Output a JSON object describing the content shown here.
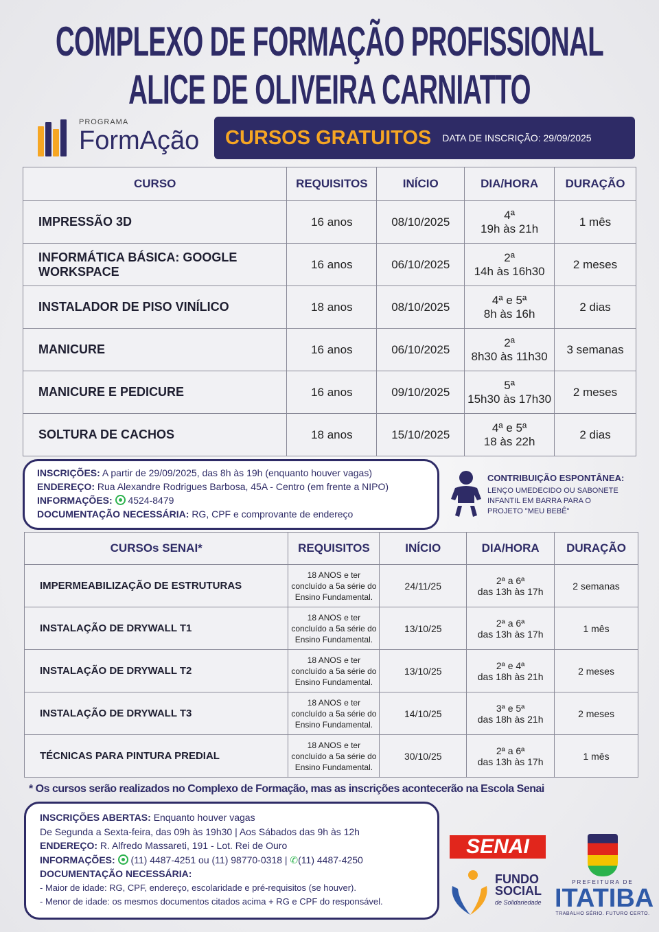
{
  "title": {
    "line1": "COMPLEXO DE FORMAÇÃO PROFISSIONAL",
    "line2": "ALICE DE OLIVEIRA CARNIATTO"
  },
  "logo": {
    "small": "PROGRAMA",
    "name": "FormAção"
  },
  "banner": {
    "title": "CURSOS GRATUITOS",
    "date": "DATA DE INSCRIÇÃO: 29/09/2025"
  },
  "table1": {
    "headers": [
      "CURSO",
      "REQUISITOS",
      "INÍCIO",
      "DIA/HORA",
      "DURAÇÃO"
    ],
    "rows": [
      {
        "curso": "IMPRESSÃO 3D",
        "req": "16 anos",
        "inicio": "08/10/2025",
        "dia": "4ª",
        "hora": "19h às 21h",
        "dur": "1 mês"
      },
      {
        "curso": "INFORMÁTICA BÁSICA: GOOGLE WORKSPACE",
        "req": "16 anos",
        "inicio": "06/10/2025",
        "dia": "2ª",
        "hora": "14h às 16h30",
        "dur": "2 meses"
      },
      {
        "curso": "INSTALADOR DE PISO VINÍLICO",
        "req": "18 anos",
        "inicio": "08/10/2025",
        "dia": "4ª e 5ª",
        "hora": "8h às 16h",
        "dur": "2 dias"
      },
      {
        "curso": "MANICURE",
        "req": "16 anos",
        "inicio": "06/10/2025",
        "dia": "2ª",
        "hora": "8h30 às 11h30",
        "dur": "3 semanas"
      },
      {
        "curso": "MANICURE E PEDICURE",
        "req": "16 anos",
        "inicio": "09/10/2025",
        "dia": "5ª",
        "hora": "15h30 às 17h30",
        "dur": "2 meses"
      },
      {
        "curso": "SOLTURA DE CACHOS",
        "req": "18 anos",
        "inicio": "15/10/2025",
        "dia": "4ª e 5ª",
        "hora": "18 às 22h",
        "dur": "2 dias"
      }
    ]
  },
  "info1": {
    "l1": "INSCRIÇÕES:",
    "v1": "A partir de 29/09/2025, das 8h às 19h (enquanto houver vagas)",
    "l2": "ENDEREÇO:",
    "v2": "Rua Alexandre Rodrigues Barbosa, 45A - Centro (em frente a NIPO)",
    "l3": "INFORMAÇÕES:",
    "v3": "4524-8479",
    "l4": "DOCUMENTAÇÃO NECESSÁRIA:",
    "v4": "RG, CPF e comprovante de endereço"
  },
  "contrib": {
    "title": "CONTRIBUIÇÃO ESPONTÂNEA:",
    "text": "LENÇO UMEDECIDO OU SABONETE INFANTIL EM BARRA PARA O PROJETO \"MEU BEBÊ\""
  },
  "table2": {
    "headers": [
      "CURSOs SENAI*",
      "REQUISITOS",
      "INÍCIO",
      "DIA/HORA",
      "DURAÇÃO"
    ],
    "rows": [
      {
        "curso": "IMPERMEABILIZAÇÃO DE ESTRUTURAS",
        "req": "18 ANOS e ter concluído a 5a série do Ensino Fundamental.",
        "inicio": "24/11/25",
        "dia": "2ª a 6ª",
        "hora": "das 13h às 17h",
        "dur": "2 semanas"
      },
      {
        "curso": "INSTALAÇÃO DE DRYWALL T1",
        "req": "18 ANOS e ter concluído a 5a série do Ensino Fundamental.",
        "inicio": "13/10/25",
        "dia": "2ª a 6ª",
        "hora": "das 13h às 17h",
        "dur": "1 mês"
      },
      {
        "curso": "INSTALAÇÃO DE DRYWALL T2",
        "req": "18 ANOS e ter concluído a 5a série do Ensino Fundamental.",
        "inicio": "13/10/25",
        "dia": "2ª e 4ª",
        "hora": "das 18h às 21h",
        "dur": "2 meses"
      },
      {
        "curso": "INSTALAÇÃO DE DRYWALL T3",
        "req": "18 ANOS e ter concluído a 5a série do Ensino Fundamental.",
        "inicio": "14/10/25",
        "dia": "3ª e 5ª",
        "hora": "das 18h às 21h",
        "dur": "2 meses"
      },
      {
        "curso": "TÉCNICAS PARA PINTURA PREDIAL",
        "req": "18 ANOS e ter concluído a 5a série do Ensino Fundamental.",
        "inicio": "30/10/25",
        "dia": "2ª a 6ª",
        "hora": "das 13h às 17h",
        "dur": "1 mês"
      }
    ]
  },
  "footnote": "* Os cursos serão realizados no Complexo de Formação, mas as inscrições acontecerão na Escola Senai",
  "info2": {
    "l1": "INSCRIÇÕES ABERTAS:",
    "v1": "Enquanto houver vagas",
    "line2": "De Segunda a Sexta-feira, das 09h às 19h30 |  Aos Sábados das 9h às 12h",
    "l3": "ENDEREÇO:",
    "v3": "R. Alfredo Massareti, 191 - Lot. Rei de Ouro",
    "l4": "INFORMAÇÕES:",
    "v4a": "(11) 4487-4251 ou (11) 98770-0318 |",
    "v4b": "(11) 4487-4250",
    "l5": "DOCUMENTAÇÃO NECESSÁRIA:",
    "d1": "- Maior de idade: RG, CPF, endereço, escolaridade e pré-requisitos (se houver).",
    "d2": "- Menor de idade: os mesmos documentos citados acima + RG e CPF do responsável."
  },
  "logos": {
    "senai": "SENAI",
    "fundo1": "FUNDO",
    "fundo2": "SOCIAL",
    "fundo3": "de Solidariedade",
    "pref": "PREFEITURA DE",
    "itatiba": "ITATIBA",
    "slogan": "TRABALHO SÉRIO. FUTURO CERTO."
  },
  "colors": {
    "navy": "#2e2b66",
    "orange": "#f6a623",
    "senai_red": "#e1261c",
    "whatsapp": "#2bb24c"
  }
}
